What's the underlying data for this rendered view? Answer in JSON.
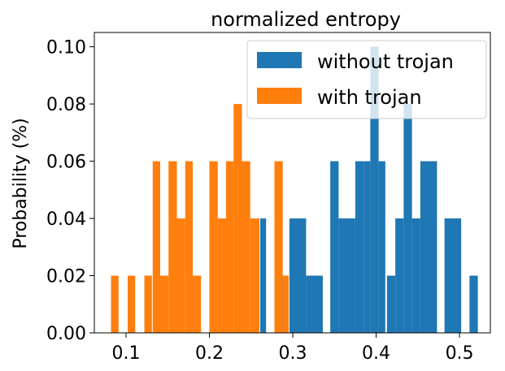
{
  "chart_data": {
    "type": "bar",
    "title": "normalized entropy",
    "xlabel": "",
    "ylabel": "Probability (%)",
    "xlim": [
      0.062,
      0.537
    ],
    "ylim": [
      0.0,
      0.105
    ],
    "xticks": [
      0.1,
      0.2,
      0.3,
      0.4,
      0.5
    ],
    "xtick_labels": [
      "0.1",
      "0.2",
      "0.3",
      "0.4",
      "0.5"
    ],
    "yticks": [
      0.0,
      0.02,
      0.04,
      0.06,
      0.08,
      0.1
    ],
    "ytick_labels": [
      "0.00",
      "0.02",
      "0.04",
      "0.06",
      "0.08",
      "0.10"
    ],
    "legend_position": "top-right",
    "grid": false,
    "series": [
      {
        "name": "without trojan",
        "color": "#1f77b4",
        "bins": [
          {
            "x0": 0.261,
            "x1": 0.268,
            "value": 0.04
          },
          {
            "x0": 0.282,
            "x1": 0.289,
            "value": 0.02
          },
          {
            "x0": 0.296,
            "x1": 0.316,
            "value": 0.04
          },
          {
            "x0": 0.316,
            "x1": 0.336,
            "value": 0.02
          },
          {
            "x0": 0.345,
            "x1": 0.355,
            "value": 0.06
          },
          {
            "x0": 0.355,
            "x1": 0.375,
            "value": 0.04
          },
          {
            "x0": 0.375,
            "x1": 0.385,
            "value": 0.06
          },
          {
            "x0": 0.385,
            "x1": 0.393,
            "value": 0.06
          },
          {
            "x0": 0.393,
            "x1": 0.403,
            "value": 0.1
          },
          {
            "x0": 0.403,
            "x1": 0.411,
            "value": 0.06
          },
          {
            "x0": 0.413,
            "x1": 0.423,
            "value": 0.02
          },
          {
            "x0": 0.423,
            "x1": 0.433,
            "value": 0.04
          },
          {
            "x0": 0.433,
            "x1": 0.443,
            "value": 0.08
          },
          {
            "x0": 0.443,
            "x1": 0.453,
            "value": 0.04
          },
          {
            "x0": 0.453,
            "x1": 0.473,
            "value": 0.06
          },
          {
            "x0": 0.482,
            "x1": 0.502,
            "value": 0.04
          },
          {
            "x0": 0.512,
            "x1": 0.522,
            "value": 0.02
          }
        ]
      },
      {
        "name": "with trojan",
        "color": "#ff7f0e",
        "bins": [
          {
            "x0": 0.082,
            "x1": 0.091,
            "value": 0.02
          },
          {
            "x0": 0.102,
            "x1": 0.111,
            "value": 0.02
          },
          {
            "x0": 0.122,
            "x1": 0.131,
            "value": 0.02
          },
          {
            "x0": 0.132,
            "x1": 0.141,
            "value": 0.06
          },
          {
            "x0": 0.141,
            "x1": 0.151,
            "value": 0.02
          },
          {
            "x0": 0.151,
            "x1": 0.161,
            "value": 0.06
          },
          {
            "x0": 0.161,
            "x1": 0.171,
            "value": 0.04
          },
          {
            "x0": 0.171,
            "x1": 0.18,
            "value": 0.06
          },
          {
            "x0": 0.18,
            "x1": 0.19,
            "value": 0.02
          },
          {
            "x0": 0.19,
            "x1": 0.2,
            "value": 0.0
          },
          {
            "x0": 0.2,
            "x1": 0.21,
            "value": 0.06
          },
          {
            "x0": 0.21,
            "x1": 0.22,
            "value": 0.04
          },
          {
            "x0": 0.22,
            "x1": 0.229,
            "value": 0.06
          },
          {
            "x0": 0.229,
            "x1": 0.239,
            "value": 0.08
          },
          {
            "x0": 0.239,
            "x1": 0.249,
            "value": 0.06
          },
          {
            "x0": 0.249,
            "x1": 0.26,
            "value": 0.04
          },
          {
            "x0": 0.278,
            "x1": 0.288,
            "value": 0.06
          },
          {
            "x0": 0.288,
            "x1": 0.295,
            "value": 0.02
          }
        ]
      }
    ]
  }
}
